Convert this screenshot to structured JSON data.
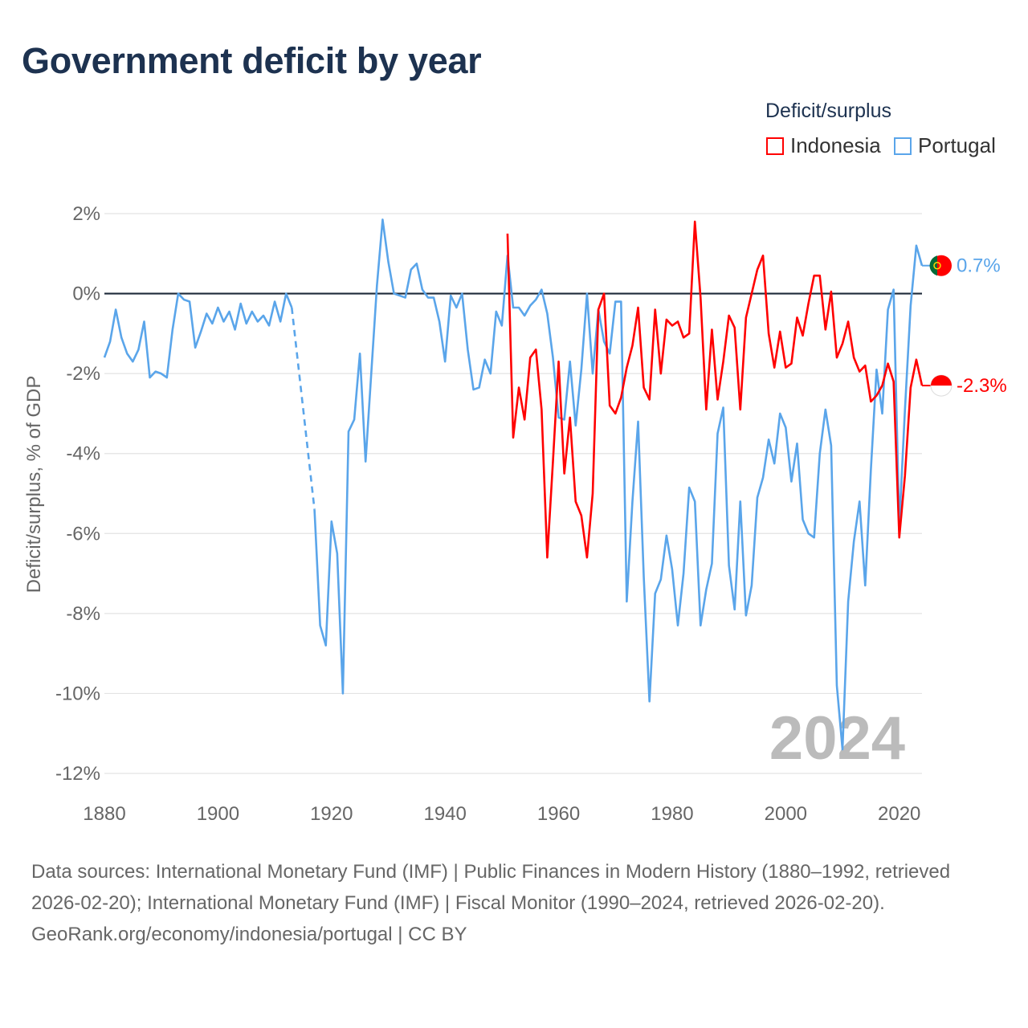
{
  "chart_data": {
    "type": "line",
    "title": "Government deficit by year",
    "ylabel": "Deficit/surplus, % of GDP",
    "xlabel": "",
    "xlim": [
      1880,
      2024
    ],
    "ylim": [
      -12,
      2
    ],
    "x_ticks": [
      1880,
      1900,
      1920,
      1940,
      1960,
      1980,
      2000,
      2020
    ],
    "x_tick_labels": [
      "1880",
      "1900",
      "1920",
      "1940",
      "1960",
      "1980",
      "2000",
      "2020"
    ],
    "y_ticks": [
      2,
      0,
      -2,
      -4,
      -6,
      -8,
      -10,
      -12
    ],
    "y_tick_labels": [
      "2%",
      "0%",
      "-2%",
      "-4%",
      "-6%",
      "-8%",
      "-10%",
      "-12%"
    ],
    "grid": true,
    "legend_title": "Deficit/surplus",
    "legend_position": "top-right",
    "year_annotation": "2024",
    "series": [
      {
        "name": "Indonesia",
        "color": "#ff0000",
        "start_year": 1951,
        "end_label": "-2.3%",
        "values": [
          1.5,
          -3.6,
          -2.35,
          -3.15,
          -1.6,
          -1.4,
          -2.9,
          -6.6,
          -4.2,
          -1.7,
          -4.5,
          -3.1,
          -5.2,
          -5.55,
          -6.6,
          -5.0,
          -0.4,
          0.0,
          -2.8,
          -3.0,
          -2.6,
          -1.85,
          -1.3,
          -0.35,
          -2.35,
          -2.65,
          -0.4,
          -2.0,
          -0.65,
          -0.8,
          -0.7,
          -1.1,
          -1.0,
          1.8,
          -0.1,
          -2.9,
          -0.9,
          -2.65,
          -1.7,
          -0.55,
          -0.85,
          -2.9,
          -0.6,
          0.0,
          0.6,
          0.95,
          -1.0,
          -1.85,
          -0.95,
          -1.85,
          -1.75,
          -0.6,
          -1.05,
          -0.25,
          0.45,
          0.45,
          -0.9,
          0.05,
          -1.6,
          -1.25,
          -0.7,
          -1.6,
          -1.95,
          -1.8,
          -2.7,
          -2.55,
          -2.3,
          -1.75,
          -2.2,
          -6.1,
          -4.55,
          -2.35,
          -1.65,
          -2.3
        ]
      },
      {
        "name": "Portugal",
        "color": "#5aa5ea",
        "start_year": 1880,
        "end_label": "0.7%",
        "values": [
          -1.6,
          -1.2,
          -0.4,
          -1.1,
          -1.5,
          -1.7,
          -1.4,
          -0.7,
          -2.1,
          -1.95,
          -2.0,
          -2.1,
          -0.9,
          0.0,
          -0.15,
          -0.2,
          -1.35,
          -0.95,
          -0.5,
          -0.75,
          -0.35,
          -0.7,
          -0.45,
          -0.9,
          -0.25,
          -0.75,
          -0.45,
          -0.7,
          -0.55,
          -0.8,
          -0.2,
          -0.7,
          0.0,
          -0.35,
          null,
          null,
          null,
          -5.4,
          -8.3,
          -8.8,
          -5.7,
          -6.5,
          -10.0,
          -3.45,
          -3.15,
          -1.5,
          -4.2,
          -2.0,
          0.2,
          1.85,
          0.8,
          0.0,
          -0.05,
          -0.1,
          0.6,
          0.75,
          0.1,
          -0.1,
          -0.1,
          -0.7,
          -1.7,
          -0.05,
          -0.35,
          0.0,
          -1.4,
          -2.4,
          -2.35,
          -1.65,
          -2.0,
          -0.45,
          -0.8,
          0.95,
          -0.35,
          -0.35,
          -0.55,
          -0.3,
          -0.15,
          0.1,
          -0.5,
          -1.6,
          -3.1,
          -3.15,
          -1.7,
          -3.3,
          -1.9,
          0.0,
          -2.0,
          -0.4,
          -1.2,
          -1.5,
          -0.2,
          -0.2,
          -7.7,
          -5.2,
          -3.2,
          -7.1,
          -10.2,
          -7.5,
          -7.15,
          -6.05,
          -6.9,
          -8.3,
          -7.0,
          -4.85,
          -5.2,
          -8.3,
          -7.4,
          -6.75,
          -3.5,
          -2.85,
          -6.8,
          -7.9,
          -5.2,
          -8.05,
          -7.3,
          -5.1,
          -4.6,
          -3.65,
          -4.25,
          -3.0,
          -3.35,
          -4.7,
          -3.75,
          -5.65,
          -6.0,
          -6.1,
          -4.0,
          -2.9,
          -3.8,
          -9.8,
          -11.4,
          -7.7,
          -6.2,
          -5.2,
          -7.3,
          -4.4,
          -1.9,
          -3.0,
          -0.4,
          0.1,
          -5.8,
          -2.9,
          -0.3,
          1.2,
          0.7
        ]
      }
    ]
  },
  "footer": {
    "sources": "Data sources: International Monetary Fund (IMF) | Public Finances in Modern History (1880–1992, retrieved 2026-02-20); International Monetary Fund (IMF) | Fiscal Monitor (1990–2024, retrieved 2026-02-20).",
    "credit": "GeoRank.org/economy/indonesia/portugal | CC BY"
  }
}
